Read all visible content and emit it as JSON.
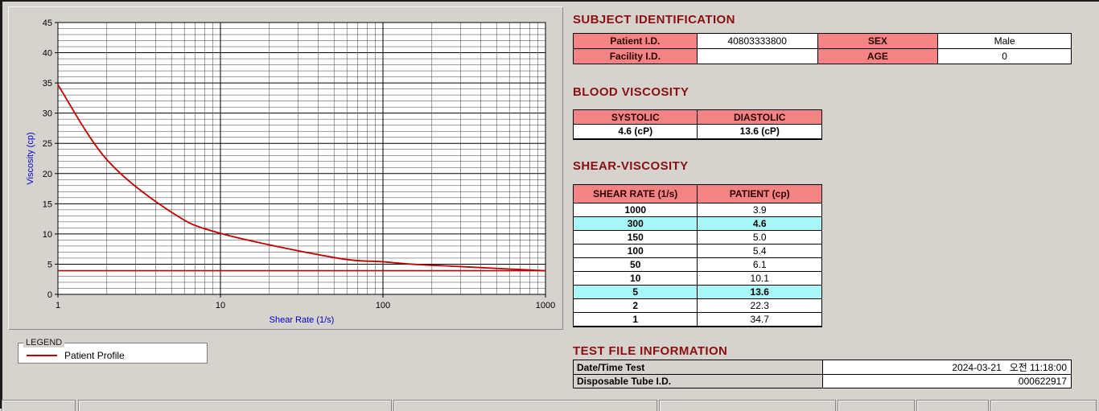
{
  "chart": {
    "legend_title": "LEGEND",
    "legend_series": "Patient Profile"
  },
  "chart_data": {
    "type": "line",
    "title": "",
    "xlabel": "Shear Rate (1/s)",
    "ylabel": "Viscosity (cp)",
    "xscale": "log",
    "xlim": [
      1,
      1000
    ],
    "ylim": [
      0,
      45
    ],
    "x_ticks": [
      1,
      10,
      100,
      1000
    ],
    "y_ticks": [
      0,
      5,
      10,
      15,
      20,
      25,
      30,
      35,
      40,
      45
    ],
    "grid": true,
    "legend_position": "outside-bottom-left",
    "x": [
      1,
      2,
      5,
      10,
      50,
      100,
      150,
      300,
      1000
    ],
    "series": [
      {
        "name": "Patient Profile",
        "values": [
          34.7,
          22.3,
          13.6,
          10.1,
          6.1,
          5.4,
          5.0,
          4.6,
          3.9
        ]
      }
    ],
    "baseline": 3.9
  },
  "subject": {
    "heading": "SUBJECT IDENTIFICATION",
    "rows": [
      {
        "label1": "Patient I.D.",
        "value1": "40803333800",
        "label2": "SEX",
        "value2": "Male"
      },
      {
        "label1": "Facility I.D.",
        "value1": "",
        "label2": "AGE",
        "value2": "0"
      }
    ]
  },
  "blood_viscosity": {
    "heading": "BLOOD VISCOSITY",
    "headers": [
      "SYSTOLIC",
      "DIASTOLIC"
    ],
    "values": [
      "4.6 (cP)",
      "13.6 (cP)"
    ]
  },
  "shear_viscosity": {
    "heading": "SHEAR-VISCOSITY",
    "headers": [
      "SHEAR RATE (1/s)",
      "PATIENT (cp)"
    ],
    "rows": [
      {
        "rate": "1000",
        "value": "3.9",
        "highlight": false
      },
      {
        "rate": "300",
        "value": "4.6",
        "highlight": true
      },
      {
        "rate": "150",
        "value": "5.0",
        "highlight": false
      },
      {
        "rate": "100",
        "value": "5.4",
        "highlight": false
      },
      {
        "rate": "50",
        "value": "6.1",
        "highlight": false
      },
      {
        "rate": "10",
        "value": "10.1",
        "highlight": false
      },
      {
        "rate": "5",
        "value": "13.6",
        "highlight": true
      },
      {
        "rate": "2",
        "value": "22.3",
        "highlight": false
      },
      {
        "rate": "1",
        "value": "34.7",
        "highlight": false
      }
    ]
  },
  "test_file": {
    "heading": "TEST FILE INFORMATION",
    "rows": [
      {
        "label": "Date/Time Test",
        "value": "2024-03-21   오전 11:18:00"
      },
      {
        "label": "Disposable Tube I.D.",
        "value": "000622917"
      }
    ]
  },
  "colors": {
    "series": "#c00000",
    "axis_label": "#0000cc",
    "grid_minor": "#3a3a3a",
    "grid_major": "#000000",
    "table_header_bg": "#f48484",
    "highlight_bg": "#a9f6f8",
    "heading_text": "#8b0f0f"
  }
}
